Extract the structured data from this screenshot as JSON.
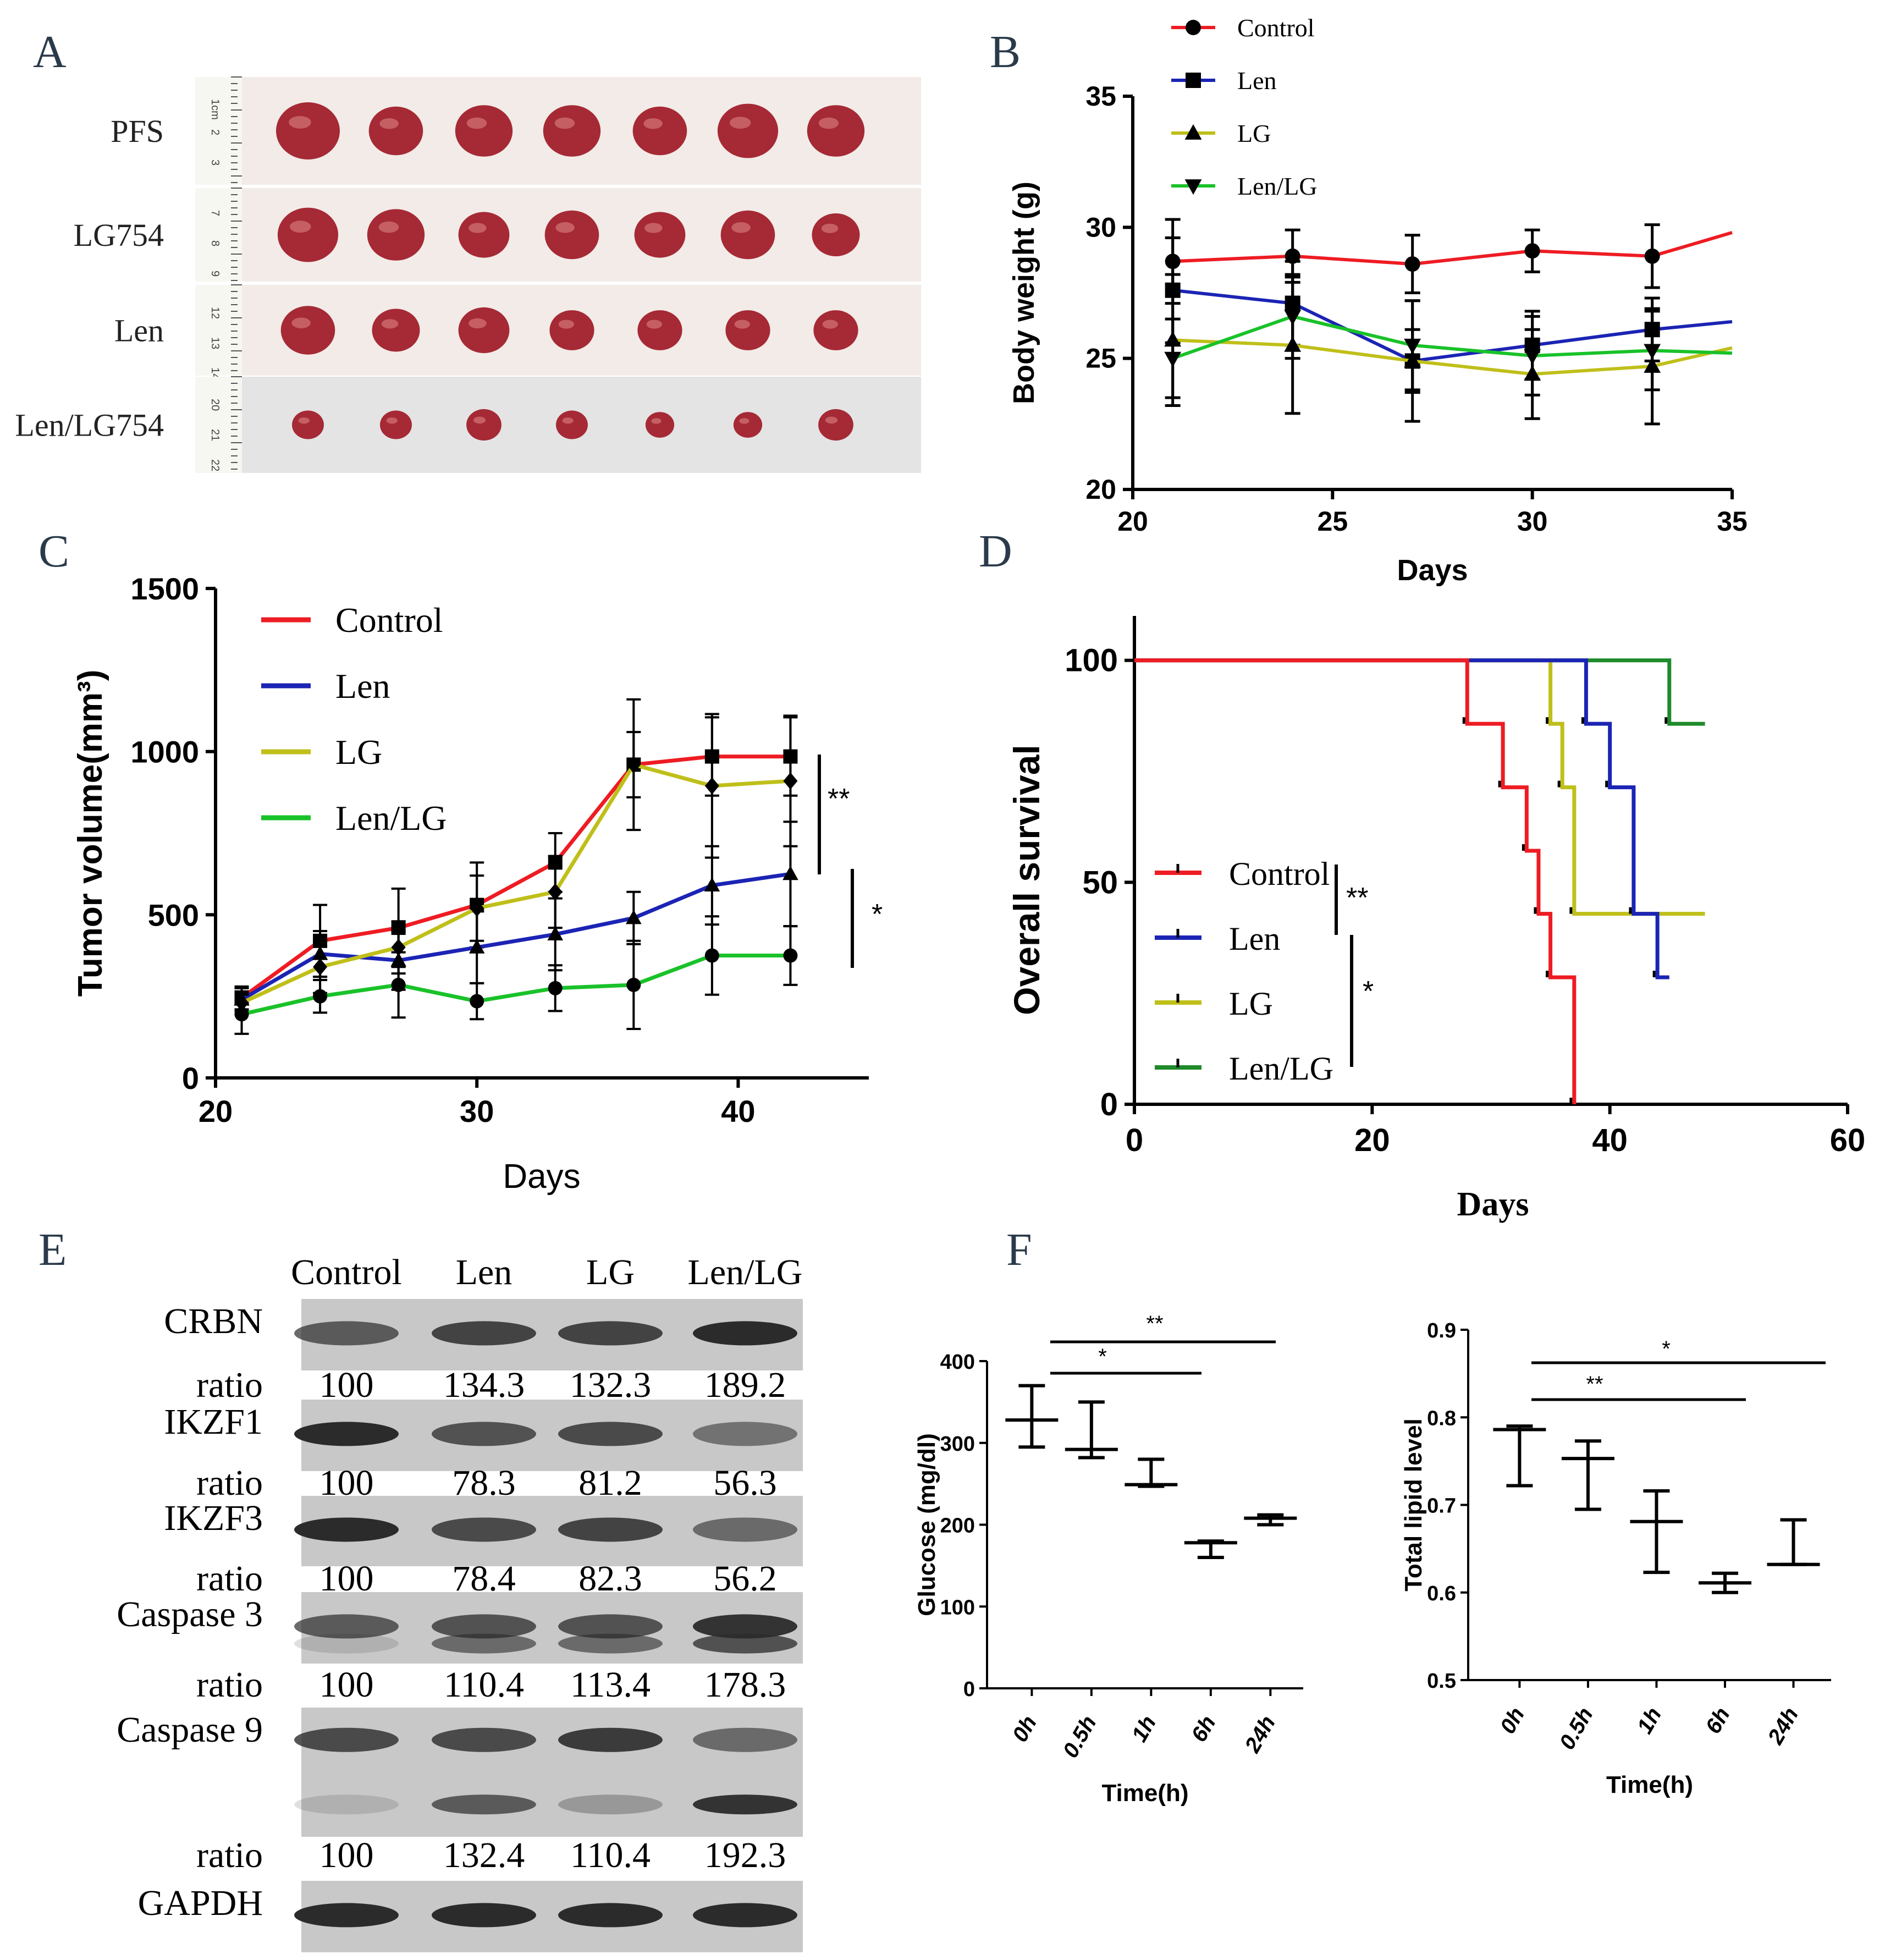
{
  "panel_letters": [
    "A",
    "B",
    "C",
    "D",
    "E",
    "F"
  ],
  "colors": {
    "Control": "#ee1c23",
    "Len": "#1b24b4",
    "LG": "#bfbf1a",
    "Len/LG": "#19c229",
    "Len/LG_D": "#1e8a2a",
    "axis": "#000000",
    "paper": "#f2ebe8",
    "paper2": "#e4e4e4",
    "tumor": "#a52a35",
    "band": "#2b2b2b"
  },
  "panelA": {
    "rows": [
      "PFS",
      "LG754",
      "Len",
      "Len/LG754"
    ],
    "ruler_labels": [
      [
        "1cm",
        "2",
        "3"
      ],
      [
        "7",
        "8",
        "9"
      ],
      [
        "12",
        "13",
        "14"
      ],
      [
        "20",
        "21",
        "22"
      ]
    ],
    "tumor_sizes": [
      [
        1.0,
        0.85,
        0.9,
        0.9,
        0.85,
        0.95,
        0.9
      ],
      [
        0.95,
        0.9,
        0.8,
        0.85,
        0.8,
        0.85,
        0.75
      ],
      [
        0.85,
        0.75,
        0.8,
        0.7,
        0.7,
        0.7,
        0.7
      ],
      [
        0.5,
        0.5,
        0.55,
        0.5,
        0.45,
        0.45,
        0.55
      ]
    ]
  },
  "panelE": {
    "columns": [
      "Control",
      "Len",
      "LG",
      "Len/LG"
    ],
    "rows": [
      {
        "label": "CRBN",
        "ratio_label": "ratio",
        "ratios": [
          "100",
          "134.3",
          "132.3",
          "189.2"
        ],
        "intensity": [
          0.7,
          0.85,
          0.85,
          1.0
        ]
      },
      {
        "label": "IKZF1",
        "ratio_label": "ratio",
        "ratios": [
          "100",
          "78.3",
          "81.2",
          "56.3"
        ],
        "intensity": [
          1.0,
          0.75,
          0.8,
          0.55
        ]
      },
      {
        "label": "IKZF3",
        "ratio_label": "ratio",
        "ratios": [
          "100",
          "78.4",
          "82.3",
          "56.2"
        ],
        "intensity": [
          1.0,
          0.8,
          0.85,
          0.6
        ]
      },
      {
        "label": "Caspase 3",
        "ratio_label": "ratio",
        "ratios": [
          "100",
          "110.4",
          "113.4",
          "178.3"
        ],
        "intensity": [
          0.7,
          0.75,
          0.75,
          0.95
        ]
      },
      {
        "label": "Caspase 9",
        "ratio_label": "ratio",
        "ratios": [
          "100",
          "132.4",
          "110.4",
          "192.3"
        ],
        "intensity": [
          0.8,
          0.8,
          0.9,
          0.6
        ]
      },
      {
        "label": "GAPDH",
        "ratio_label": "",
        "ratios": [],
        "intensity": [
          1.0,
          1.0,
          1.0,
          1.0
        ]
      }
    ]
  },
  "chart_data": [
    {
      "id": "B",
      "type": "line",
      "title": "",
      "xlabel": "Days",
      "ylabel": "Body weight (g)",
      "xlim": [
        20,
        35
      ],
      "ylim": [
        20,
        35
      ],
      "xticks": [
        "20",
        "25",
        "30",
        "35"
      ],
      "yticks": [
        "20",
        "25",
        "30",
        "35"
      ],
      "x": [
        21,
        24,
        27,
        30,
        33,
        35
      ],
      "series": [
        {
          "name": "Control",
          "marker": "circle",
          "values": [
            28.7,
            28.9,
            28.6,
            29.1,
            28.9,
            29.8
          ],
          "err": [
            1.6,
            1.0,
            1.1,
            0.8,
            1.2,
            0
          ]
        },
        {
          "name": "Len",
          "marker": "square",
          "values": [
            27.6,
            27.1,
            24.9,
            25.5,
            26.1,
            26.4
          ],
          "err": [
            2.0,
            1.6,
            1.2,
            1.3,
            1.2,
            0
          ]
        },
        {
          "name": "LG",
          "marker": "triangle",
          "values": [
            25.7,
            25.5,
            24.9,
            24.4,
            24.7,
            25.4
          ],
          "err": [
            2.5,
            2.6,
            2.3,
            1.7,
            2.2,
            0
          ]
        },
        {
          "name": "Len/LG",
          "marker": "triangle-down",
          "values": [
            25.0,
            26.6,
            25.5,
            25.1,
            25.3,
            25.2
          ],
          "err": [
            1.5,
            1.6,
            1.7,
            1.5,
            1.5,
            0
          ]
        }
      ],
      "legend": [
        "Control",
        "Len",
        "LG",
        "Len/LG"
      ]
    },
    {
      "id": "C",
      "type": "line",
      "title": "",
      "xlabel": "Days",
      "ylabel": "Tumor volume(mm³)",
      "xlim": [
        20,
        45
      ],
      "ylim": [
        0,
        1500
      ],
      "xticks": [
        "20",
        "30",
        "40"
      ],
      "yticks": [
        "0",
        "500",
        "1000",
        "1500"
      ],
      "x": [
        21,
        24,
        27,
        30,
        33,
        36,
        39,
        42
      ],
      "series": [
        {
          "name": "Control",
          "marker": "square",
          "values": [
            245,
            420,
            460,
            530,
            660,
            960,
            985,
            985
          ],
          "err": [
            35,
            110,
            120,
            130,
            90,
            200,
            120,
            120
          ]
        },
        {
          "name": "Len",
          "marker": "triangle",
          "values": [
            240,
            380,
            360,
            400,
            440,
            490,
            590,
            625
          ],
          "err": [
            35,
            70,
            90,
            110,
            110,
            80,
            120,
            160
          ]
        },
        {
          "name": "LG",
          "marker": "diamond",
          "values": [
            230,
            340,
            400,
            520,
            570,
            960,
            895,
            910
          ],
          "err": [
            35,
            80,
            80,
            100,
            110,
            100,
            220,
            200
          ]
        },
        {
          "name": "Len/LG",
          "marker": "circle",
          "values": [
            195,
            250,
            285,
            235,
            275,
            285,
            375,
            375
          ],
          "err": [
            60,
            50,
            100,
            55,
            70,
            135,
            120,
            90
          ]
        }
      ],
      "legend": [
        "Control",
        "Len",
        "LG",
        "Len/LG"
      ],
      "annotations": [
        "**",
        "*"
      ]
    },
    {
      "id": "D",
      "type": "line",
      "subtype": "kaplan-meier",
      "title": "",
      "xlabel": "Days",
      "ylabel": "Overall survival",
      "xlim": [
        0,
        60
      ],
      "ylim": [
        0,
        110
      ],
      "xticks": [
        "0",
        "20",
        "40",
        "60"
      ],
      "yticks": [
        "0",
        "50",
        "100"
      ],
      "series": [
        {
          "name": "Control",
          "steps": [
            [
              0,
              100
            ],
            [
              28,
              100
            ],
            [
              28,
              85.7
            ],
            [
              31,
              85.7
            ],
            [
              31,
              71.4
            ],
            [
              33,
              71.4
            ],
            [
              33,
              57.1
            ],
            [
              34,
              57.1
            ],
            [
              34,
              42.9
            ],
            [
              35,
              42.9
            ],
            [
              35,
              28.6
            ],
            [
              37,
              28.6
            ],
            [
              37,
              0
            ]
          ]
        },
        {
          "name": "Len",
          "steps": [
            [
              0,
              100
            ],
            [
              38,
              100
            ],
            [
              38,
              85.7
            ],
            [
              40,
              85.7
            ],
            [
              40,
              71.4
            ],
            [
              42,
              71.4
            ],
            [
              42,
              42.9
            ],
            [
              44,
              42.9
            ],
            [
              44,
              28.6
            ],
            [
              45,
              28.6
            ]
          ]
        },
        {
          "name": "LG",
          "steps": [
            [
              0,
              100
            ],
            [
              35,
              100
            ],
            [
              35,
              85.7
            ],
            [
              36,
              85.7
            ],
            [
              36,
              71.4
            ],
            [
              37,
              71.4
            ],
            [
              37,
              42.9
            ],
            [
              48,
              42.9
            ]
          ]
        },
        {
          "name": "Len/LG",
          "steps": [
            [
              0,
              100
            ],
            [
              45,
              100
            ],
            [
              45,
              85.7
            ],
            [
              48,
              85.7
            ]
          ]
        }
      ],
      "legend": [
        "Control",
        "Len",
        "LG",
        "Len/LG"
      ],
      "annotations": [
        "**",
        "*"
      ]
    },
    {
      "id": "F1",
      "type": "boxplot",
      "title": "",
      "xlabel": "Time(h)",
      "ylabel": "Glucose (mg/dl)",
      "ylim": [
        0,
        400
      ],
      "categories": [
        "0h",
        "0.5h",
        "1h",
        "6h",
        "24h"
      ],
      "yticks": [
        "0",
        "100",
        "200",
        "300",
        "400"
      ],
      "values": [
        {
          "min": 295,
          "median": 328,
          "max": 370
        },
        {
          "min": 282,
          "median": 292,
          "max": 350
        },
        {
          "min": 247,
          "median": 249,
          "max": 280
        },
        {
          "min": 160,
          "median": 178,
          "max": 180
        },
        {
          "min": 200,
          "median": 208,
          "max": 212
        }
      ],
      "annotations": [
        "**",
        "*"
      ]
    },
    {
      "id": "F2",
      "type": "boxplot",
      "title": "",
      "xlabel": "Time(h)",
      "ylabel": "Total lipid level",
      "ylim": [
        0.5,
        0.9
      ],
      "categories": [
        "0h",
        "0.5h",
        "1h",
        "6h",
        "24h"
      ],
      "yticks": [
        "0.5",
        "0.6",
        "0.7",
        "0.8",
        "0.9"
      ],
      "values": [
        {
          "min": 0.722,
          "median": 0.786,
          "max": 0.79
        },
        {
          "min": 0.695,
          "median": 0.753,
          "max": 0.773
        },
        {
          "min": 0.623,
          "median": 0.681,
          "max": 0.716
        },
        {
          "min": 0.6,
          "median": 0.611,
          "max": 0.622
        },
        {
          "min": 0.632,
          "median": 0.632,
          "max": 0.683
        }
      ],
      "annotations": [
        "*",
        "**"
      ]
    }
  ]
}
